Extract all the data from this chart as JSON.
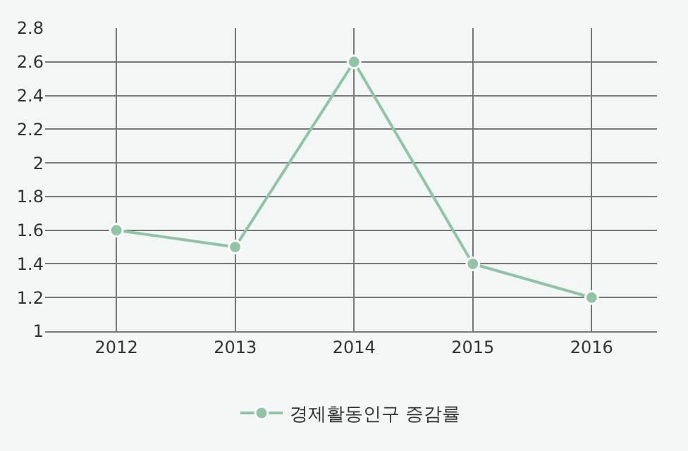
{
  "chart_data": {
    "type": "line",
    "categories": [
      "2012",
      "2013",
      "2014",
      "2015",
      "2016"
    ],
    "series": [
      {
        "name": "경제활동인구 증감률",
        "color": "#8fc4a6",
        "values": [
          1.6,
          1.5,
          2.6,
          1.4,
          1.2
        ]
      }
    ],
    "ylim": [
      1,
      2.8
    ],
    "yticks": [
      1,
      1.2,
      1.4,
      1.6,
      1.8,
      2,
      2.2,
      2.4,
      2.6,
      2.8
    ],
    "grid": true,
    "legend": "bottom",
    "marker": "circle",
    "line_style": "solid"
  }
}
